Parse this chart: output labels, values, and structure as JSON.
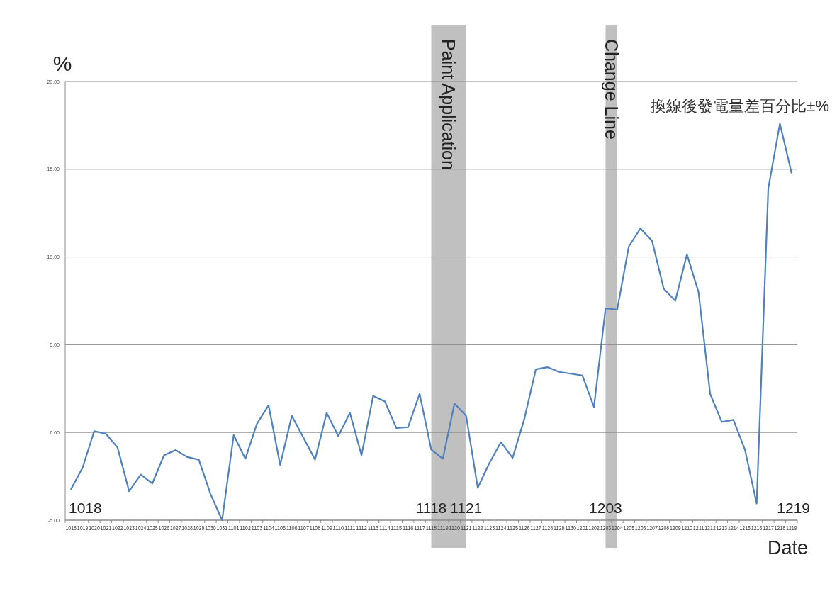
{
  "chart_data": {
    "type": "line",
    "title": "換線後發電量差百分比±%",
    "xlabel": "Date",
    "ylabel": "%",
    "categories": [
      "1018",
      "1019",
      "1020",
      "1021",
      "1022",
      "1023",
      "1024",
      "1025",
      "1026",
      "1027",
      "1028",
      "1029",
      "1030",
      "1031",
      "1101",
      "1102",
      "1103",
      "1104",
      "1105",
      "1106",
      "1107",
      "1108",
      "1109",
      "1110",
      "1111",
      "1112",
      "1113",
      "1114",
      "1115",
      "1116",
      "1117",
      "1118",
      "1119",
      "1120",
      "1121",
      "1122",
      "1123",
      "1124",
      "1125",
      "1126",
      "1127",
      "1128",
      "1129",
      "1130",
      "1201",
      "1202",
      "1203",
      "1204",
      "1205",
      "1206",
      "1207",
      "1208",
      "1209",
      "1210",
      "1211",
      "1212",
      "1213",
      "1214",
      "1215",
      "1216",
      "1217",
      "1218",
      "1219"
    ],
    "series": [
      {
        "color": "#4f81bd",
        "values": [
          -3.23,
          -2.0,
          0.08,
          -0.08,
          -0.85,
          -3.35,
          -2.4,
          -2.9,
          -1.3,
          -1.0,
          -1.4,
          -1.55,
          -3.5,
          -5.0,
          -0.15,
          -1.5,
          0.5,
          1.55,
          -1.85,
          0.95,
          -0.3,
          -1.55,
          1.12,
          -0.2,
          1.12,
          -1.3,
          2.08,
          1.78,
          0.25,
          0.3,
          2.2,
          -0.98,
          -1.5,
          1.65,
          0.95,
          -3.15,
          -1.75,
          -0.55,
          -1.45,
          0.75,
          3.6,
          3.72,
          3.45,
          3.35,
          3.25,
          1.45,
          7.07,
          7.0,
          10.6,
          11.63,
          10.92,
          8.2,
          7.5,
          10.15,
          8.0,
          2.2,
          0.6,
          0.72,
          -1.0,
          -4.05,
          13.9,
          17.6,
          14.8
        ]
      }
    ],
    "ylim": [
      -5,
      20
    ],
    "yticks": [
      {
        "value": -5,
        "label": "-5.00"
      },
      {
        "value": 0,
        "label": "0.00"
      },
      {
        "value": 5,
        "label": "5.00"
      },
      {
        "value": 10,
        "label": "10.00"
      },
      {
        "value": 15,
        "label": "15.00"
      },
      {
        "value": 20,
        "label": "20.00"
      }
    ],
    "grid": "y",
    "bands": [
      {
        "axis": "x",
        "from": "1118",
        "to": "1121",
        "label": "Paint Application",
        "color": "#c0c0c0"
      },
      {
        "axis": "x",
        "from": "1203",
        "to": "1204",
        "label": "Change Line",
        "color": "#c0c0c0"
      }
    ],
    "annotations": [
      "1018",
      {
        "text": "1118",
        "x": "1118"
      },
      {
        "text": "1121",
        "x": "1121"
      },
      {
        "text": "1203",
        "x": "1203"
      },
      "1219"
    ]
  }
}
